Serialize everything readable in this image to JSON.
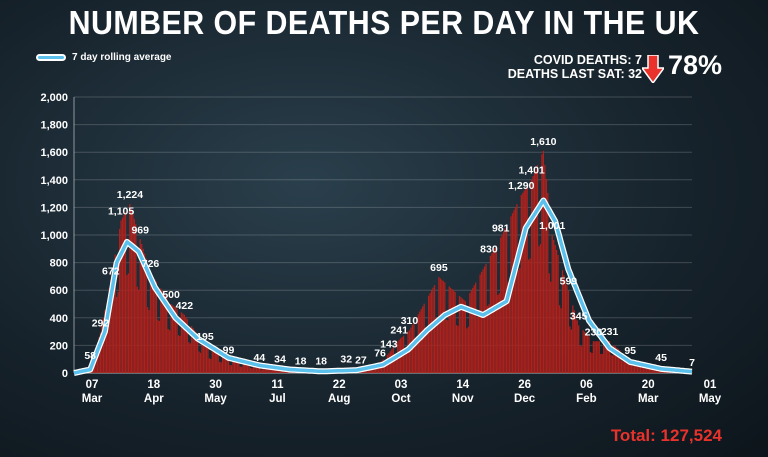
{
  "header": {
    "title": "NUMBER OF DEATHS PER DAY IN THE UK",
    "legend_label": "7 day rolling average",
    "covid_deaths": "COVID DEATHS: 7",
    "deaths_last_sat": "DEATHS LAST SAT: 32",
    "percent_change": "78%",
    "total": "Total: 127,524"
  },
  "colors": {
    "bars": "#b0211c",
    "rolling_line": "#5bc0eb",
    "arrow": "#e8322b",
    "total_text": "#e8322b"
  },
  "chart_data": {
    "type": "bar",
    "title": "NUMBER OF DEATHS PER DAY IN THE UK",
    "ylim": [
      0,
      2000
    ],
    "yticks": [
      "0",
      "200",
      "400",
      "600",
      "800",
      "1,000",
      "1,200",
      "1,400",
      "1,600",
      "1,800",
      "2,000"
    ],
    "xticks": [
      {
        "day": "07",
        "month": "Mar"
      },
      {
        "day": "18",
        "month": "Apr"
      },
      {
        "day": "30",
        "month": "May"
      },
      {
        "day": "11",
        "month": "Jul"
      },
      {
        "day": "22",
        "month": "Aug"
      },
      {
        "day": "03",
        "month": "Oct"
      },
      {
        "day": "14",
        "month": "Nov"
      },
      {
        "day": "26",
        "month": "Dec"
      },
      {
        "day": "06",
        "month": "Feb"
      },
      {
        "day": "20",
        "month": "Mar"
      },
      {
        "day": "01",
        "month": "May"
      }
    ],
    "series": [
      {
        "name": "Daily deaths",
        "kind": "bar"
      },
      {
        "name": "7 day rolling average",
        "kind": "line"
      }
    ],
    "x_start": "2020-03-07",
    "x_end": "2021-05-01",
    "daily_anchors": [
      {
        "date": "2020-03-07",
        "value": 2
      },
      {
        "date": "2020-03-18",
        "value": 58
      },
      {
        "date": "2020-03-25",
        "value": 292
      },
      {
        "date": "2020-04-01",
        "value": 672
      },
      {
        "date": "2020-04-08",
        "value": 1105
      },
      {
        "date": "2020-04-14",
        "value": 1224
      },
      {
        "date": "2020-04-21",
        "value": 969
      },
      {
        "date": "2020-04-28",
        "value": 726
      },
      {
        "date": "2020-05-12",
        "value": 500
      },
      {
        "date": "2020-05-21",
        "value": 422
      },
      {
        "date": "2020-06-04",
        "value": 195
      },
      {
        "date": "2020-06-20",
        "value": 99
      },
      {
        "date": "2020-07-11",
        "value": 44
      },
      {
        "date": "2020-07-25",
        "value": 34
      },
      {
        "date": "2020-08-08",
        "value": 18
      },
      {
        "date": "2020-08-22",
        "value": 18
      },
      {
        "date": "2020-09-08",
        "value": 32
      },
      {
        "date": "2020-09-18",
        "value": 27
      },
      {
        "date": "2020-10-01",
        "value": 76
      },
      {
        "date": "2020-10-07",
        "value": 143
      },
      {
        "date": "2020-10-14",
        "value": 241
      },
      {
        "date": "2020-10-21",
        "value": 310
      },
      {
        "date": "2020-11-10",
        "value": 695
      },
      {
        "date": "2020-11-28",
        "value": 520
      },
      {
        "date": "2020-12-14",
        "value": 830
      },
      {
        "date": "2020-12-22",
        "value": 981
      },
      {
        "date": "2021-01-05",
        "value": 1290
      },
      {
        "date": "2021-01-12",
        "value": 1401
      },
      {
        "date": "2021-01-20",
        "value": 1610
      },
      {
        "date": "2021-01-26",
        "value": 1001
      },
      {
        "date": "2021-02-06",
        "value": 599
      },
      {
        "date": "2021-02-13",
        "value": 345
      },
      {
        "date": "2021-02-23",
        "value": 230
      },
      {
        "date": "2021-03-06",
        "value": 231
      },
      {
        "date": "2021-03-20",
        "value": 95
      },
      {
        "date": "2021-04-10",
        "value": 45
      },
      {
        "date": "2021-05-01",
        "value": 7
      }
    ],
    "rolling_avg_anchors": [
      {
        "date": "2020-03-07",
        "value": 0
      },
      {
        "date": "2020-03-18",
        "value": 25
      },
      {
        "date": "2020-03-28",
        "value": 300
      },
      {
        "date": "2020-04-05",
        "value": 800
      },
      {
        "date": "2020-04-12",
        "value": 950
      },
      {
        "date": "2020-04-20",
        "value": 880
      },
      {
        "date": "2020-05-01",
        "value": 620
      },
      {
        "date": "2020-05-15",
        "value": 400
      },
      {
        "date": "2020-05-30",
        "value": 250
      },
      {
        "date": "2020-06-20",
        "value": 110
      },
      {
        "date": "2020-07-11",
        "value": 55
      },
      {
        "date": "2020-08-01",
        "value": 25
      },
      {
        "date": "2020-08-22",
        "value": 12
      },
      {
        "date": "2020-09-15",
        "value": 20
      },
      {
        "date": "2020-10-03",
        "value": 60
      },
      {
        "date": "2020-10-20",
        "value": 170
      },
      {
        "date": "2020-11-02",
        "value": 310
      },
      {
        "date": "2020-11-14",
        "value": 420
      },
      {
        "date": "2020-11-25",
        "value": 480
      },
      {
        "date": "2020-12-10",
        "value": 420
      },
      {
        "date": "2020-12-26",
        "value": 520
      },
      {
        "date": "2021-01-08",
        "value": 1050
      },
      {
        "date": "2021-01-20",
        "value": 1250
      },
      {
        "date": "2021-01-28",
        "value": 1100
      },
      {
        "date": "2021-02-06",
        "value": 750
      },
      {
        "date": "2021-02-20",
        "value": 380
      },
      {
        "date": "2021-03-06",
        "value": 180
      },
      {
        "date": "2021-03-20",
        "value": 80
      },
      {
        "date": "2021-04-10",
        "value": 30
      },
      {
        "date": "2021-05-01",
        "value": 10
      }
    ],
    "data_labels": [
      {
        "text": "58",
        "date": "2020-03-18",
        "value": 58
      },
      {
        "text": "292",
        "date": "2020-03-25",
        "value": 292
      },
      {
        "text": "672",
        "date": "2020-04-01",
        "value": 672
      },
      {
        "text": "1,105",
        "date": "2020-04-08",
        "value": 1105
      },
      {
        "text": "1,224",
        "date": "2020-04-14",
        "value": 1224
      },
      {
        "text": "969",
        "date": "2020-04-21",
        "value": 969
      },
      {
        "text": "726",
        "date": "2020-04-28",
        "value": 726
      },
      {
        "text": "500",
        "date": "2020-05-12",
        "value": 500
      },
      {
        "text": "422",
        "date": "2020-05-21",
        "value": 422
      },
      {
        "text": "195",
        "date": "2020-06-04",
        "value": 195
      },
      {
        "text": "99",
        "date": "2020-06-20",
        "value": 99
      },
      {
        "text": "44",
        "date": "2020-07-11",
        "value": 44
      },
      {
        "text": "34",
        "date": "2020-07-25",
        "value": 34
      },
      {
        "text": "18",
        "date": "2020-08-08",
        "value": 18
      },
      {
        "text": "18",
        "date": "2020-08-22",
        "value": 18
      },
      {
        "text": "32",
        "date": "2020-09-08",
        "value": 32
      },
      {
        "text": "27",
        "date": "2020-09-18",
        "value": 27
      },
      {
        "text": "76",
        "date": "2020-10-01",
        "value": 76
      },
      {
        "text": "143",
        "date": "2020-10-07",
        "value": 143
      },
      {
        "text": "241",
        "date": "2020-10-14",
        "value": 241
      },
      {
        "text": "310",
        "date": "2020-10-21",
        "value": 310
      },
      {
        "text": "695",
        "date": "2020-11-10",
        "value": 695
      },
      {
        "text": "830",
        "date": "2020-12-14",
        "value": 830
      },
      {
        "text": "981",
        "date": "2020-12-22",
        "value": 981
      },
      {
        "text": "1,290",
        "date": "2021-01-05",
        "value": 1290
      },
      {
        "text": "1,401",
        "date": "2021-01-12",
        "value": 1401
      },
      {
        "text": "1,610",
        "date": "2021-01-20",
        "value": 1610
      },
      {
        "text": "1,001",
        "date": "2021-01-26",
        "value": 1001
      },
      {
        "text": "599",
        "date": "2021-02-06",
        "value": 599
      },
      {
        "text": "345",
        "date": "2021-02-13",
        "value": 345
      },
      {
        "text": "230",
        "date": "2021-02-23",
        "value": 230
      },
      {
        "text": "231",
        "date": "2021-03-06",
        "value": 231
      },
      {
        "text": "95",
        "date": "2021-03-20",
        "value": 95
      },
      {
        "text": "45",
        "date": "2021-04-10",
        "value": 45
      },
      {
        "text": "7",
        "date": "2021-05-01",
        "value": 7
      }
    ]
  }
}
